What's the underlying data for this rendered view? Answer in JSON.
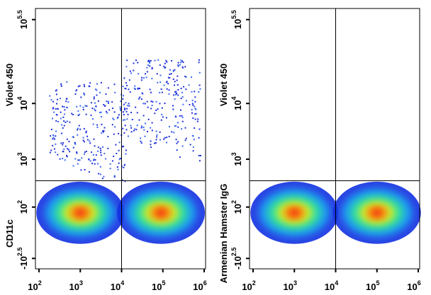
{
  "chart_data": [
    {
      "type": "density",
      "y_label_top": "Violet 450",
      "y_label_bottom": "CD11c",
      "xlim": [
        100,
        1000000
      ],
      "xlog": true,
      "xticks": [
        {
          "value": 100,
          "label": "10",
          "exp": "2"
        },
        {
          "value": 1000,
          "label": "10",
          "exp": "3"
        },
        {
          "value": 10000,
          "label": "10",
          "exp": "4"
        },
        {
          "value": 100000,
          "label": "10",
          "exp": "5"
        },
        {
          "value": 1000000,
          "label": "10",
          "exp": "6"
        }
      ],
      "ylim": [
        -500,
        500000
      ],
      "yticks": [
        {
          "value": -316,
          "label": "-10",
          "exp": "2.5"
        },
        {
          "value": 100,
          "label": "10",
          "exp": "2"
        },
        {
          "value": 1000,
          "label": "10",
          "exp": "3"
        },
        {
          "value": 10000,
          "label": "10",
          "exp": "4"
        },
        {
          "value": 316228,
          "label": "10",
          "exp": "5.5"
        }
      ],
      "gate": {
        "x": 10000,
        "y": 400
      },
      "populations": [
        {
          "x": 1000,
          "y": 60
        },
        {
          "x": 90000,
          "y": 60
        },
        {
          "x": 1500,
          "y": 2500
        },
        {
          "x": 90000,
          "y": 6000
        }
      ]
    },
    {
      "type": "density",
      "y_label_top": "Violet 450",
      "y_label_bottom": "Armenian Hamster IgG",
      "xlim": [
        100,
        1000000
      ],
      "xlog": true,
      "xticks": [
        {
          "value": 100,
          "label": "10",
          "exp": "2"
        },
        {
          "value": 1000,
          "label": "10",
          "exp": "3"
        },
        {
          "value": 10000,
          "label": "10",
          "exp": "4"
        },
        {
          "value": 100000,
          "label": "10",
          "exp": "5"
        },
        {
          "value": 1000000,
          "label": "10",
          "exp": "6"
        }
      ],
      "ylim": [
        -500,
        500000
      ],
      "yticks": [
        {
          "value": -316,
          "label": "-10",
          "exp": "2.5"
        },
        {
          "value": 100,
          "label": "10",
          "exp": "2"
        },
        {
          "value": 1000,
          "label": "10",
          "exp": "3"
        },
        {
          "value": 10000,
          "label": "10",
          "exp": "4"
        },
        {
          "value": 316228,
          "label": "10",
          "exp": "5.5"
        }
      ],
      "gate": {
        "x": 10000,
        "y": 400
      },
      "populations": [
        {
          "x": 1000,
          "y": 60
        },
        {
          "x": 100000,
          "y": 60
        }
      ]
    }
  ]
}
